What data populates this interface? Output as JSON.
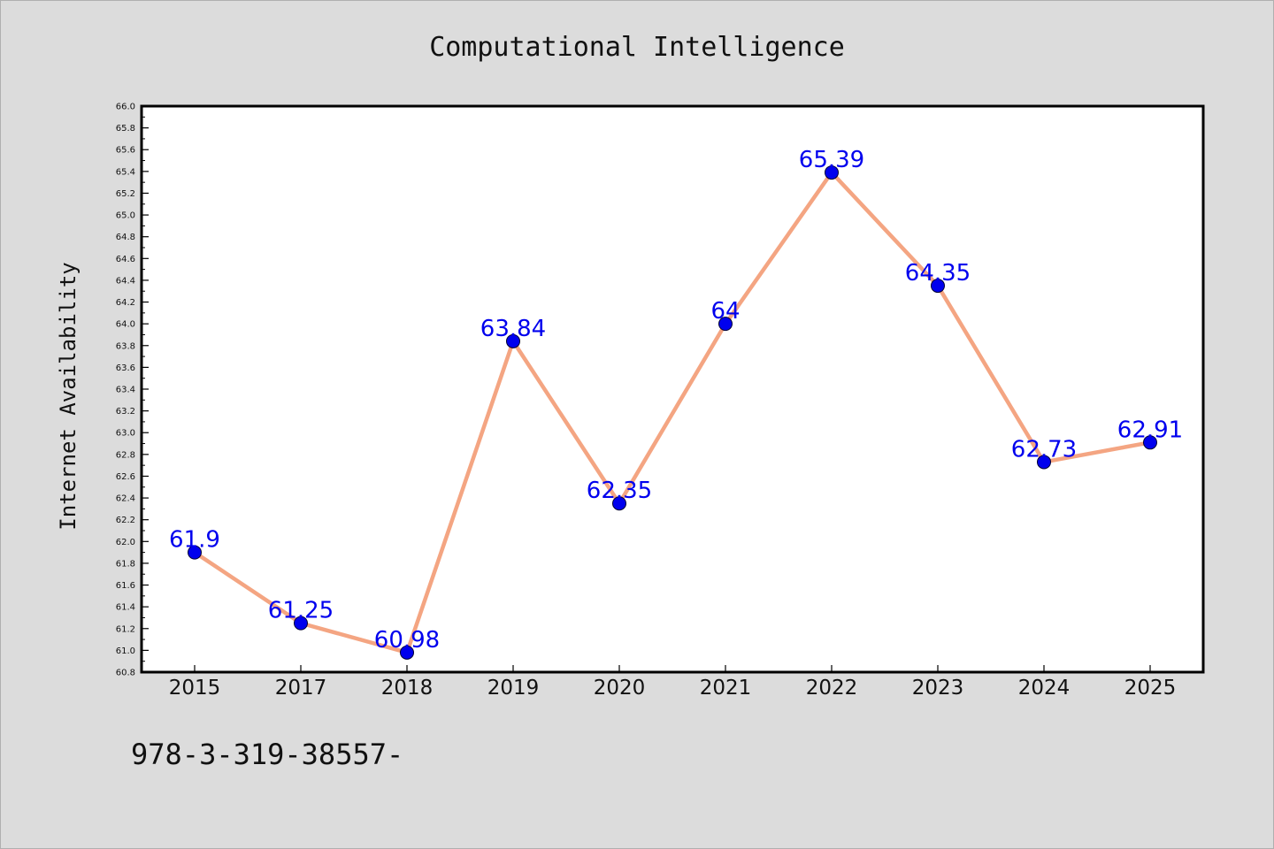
{
  "chart_data": {
    "type": "line",
    "title": "Computational Intelligence",
    "xlabel": "",
    "ylabel": "Internet Availability",
    "categories": [
      "2015",
      "2017",
      "2018",
      "2019",
      "2020",
      "2021",
      "2022",
      "2023",
      "2024",
      "2025"
    ],
    "series": [
      {
        "values": [
          61.9,
          61.25,
          60.98,
          63.84,
          62.35,
          64,
          65.39,
          64.35,
          62.73,
          62.91
        ],
        "labels": [
          "61.9",
          "61.25",
          "60.98",
          "63.84",
          "62.35",
          "64",
          "65.39",
          "64.35",
          "62.73",
          "62.91"
        ],
        "line_color": "#f4a582",
        "marker_color": "#0000ee",
        "label_color": "#0000ee"
      }
    ],
    "ylim": [
      60.8,
      66.0
    ],
    "yticks": [
      "60.8",
      "61.0",
      "61.2",
      "61.4",
      "61.6",
      "61.8",
      "62.0",
      "62.2",
      "62.4",
      "62.6",
      "62.8",
      "63.0",
      "63.2",
      "63.4",
      "63.6",
      "63.8",
      "64.0",
      "64.2",
      "64.4",
      "64.6",
      "64.8",
      "65.0",
      "65.2",
      "65.4",
      "65.6",
      "65.8",
      "66.0"
    ],
    "grid": false,
    "legend": "none"
  },
  "footer": {
    "text": "978-3-319-38557-"
  },
  "colors": {
    "background": "#dcdcdc",
    "plot_background": "#ffffff",
    "axis": "#000000"
  }
}
